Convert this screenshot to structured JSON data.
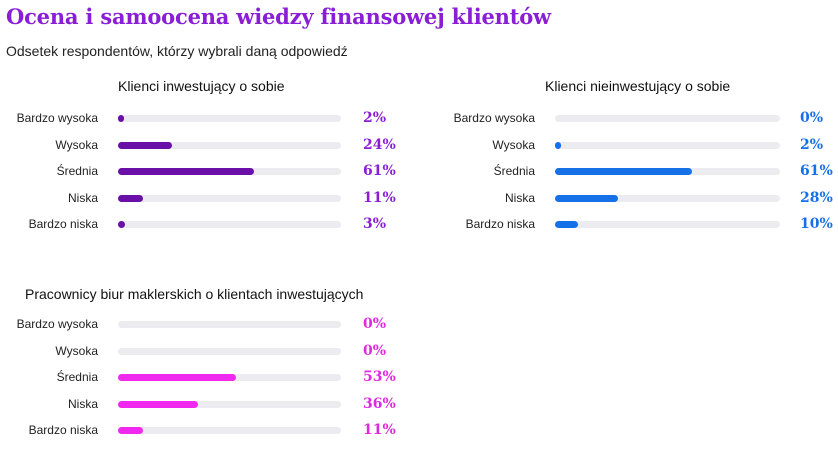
{
  "title": "Ocena i samoocena wiedzy finansowej klientów",
  "subtitle": "Odsetek respondentów, którzy wybrali daną odpowiedź",
  "colors": {
    "title": "#8a1ed6",
    "purple_fill": "#6a0fa8",
    "purple_text": "#8a1ed6",
    "blue_fill": "#1670e8",
    "blue_text": "#1670e8",
    "pink_fill": "#f028f0",
    "pink_text": "#e028e0",
    "track": "#ececf0"
  },
  "chart_data": [
    {
      "type": "bar",
      "title": "Klienci inwestujący o sobie",
      "categories": [
        "Bardzo wysoka",
        "Wysoka",
        "Średnia",
        "Niska",
        "Bardzo niska"
      ],
      "values": [
        2,
        24,
        61,
        11,
        3
      ],
      "labels": [
        "2%",
        "24%",
        "61%",
        "11%",
        "3%"
      ],
      "xlim": [
        0,
        100
      ],
      "color": "purple"
    },
    {
      "type": "bar",
      "title": "Klienci nieinwestujący o sobie",
      "categories": [
        "Bardzo wysoka",
        "Wysoka",
        "Średnia",
        "Niska",
        "Bardzo niska"
      ],
      "values": [
        0,
        2,
        61,
        28,
        10
      ],
      "labels": [
        "0%",
        "2%",
        "61%",
        "28%",
        "10%"
      ],
      "xlim": [
        0,
        100
      ],
      "color": "blue"
    },
    {
      "type": "bar",
      "title": "Pracownicy biur maklerskich o klientach inwestujących",
      "categories": [
        "Bardzo wysoka",
        "Wysoka",
        "Średnia",
        "Niska",
        "Bardzo niska"
      ],
      "values": [
        0,
        0,
        53,
        36,
        11
      ],
      "labels": [
        "0%",
        "0%",
        "53%",
        "36%",
        "11%"
      ],
      "xlim": [
        0,
        100
      ],
      "color": "pink"
    }
  ]
}
